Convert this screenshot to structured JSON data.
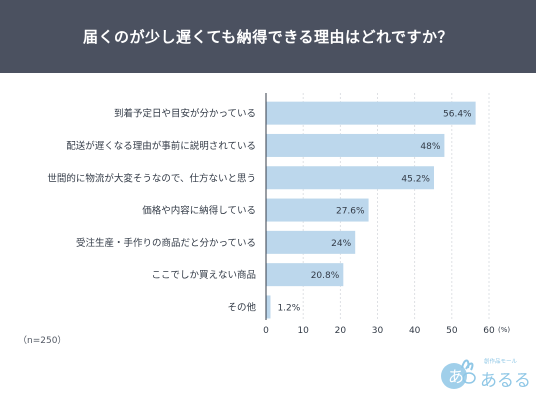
{
  "header": {
    "title": "届くのが少し遅くても納得できる理由はどれですか？"
  },
  "chart_data": {
    "type": "bar",
    "orientation": "horizontal",
    "categories": [
      "到着予定日や目安が分かっている",
      "配送が遅くなる理由が事前に説明されている",
      "世間的に物流が大変そうなので、仕方ないと思う",
      "価格や内容に納得している",
      "受注生産・手作りの商品だと分かっている",
      "ここでしか買えない商品",
      "その他"
    ],
    "values": [
      56.4,
      48,
      45.2,
      27.6,
      24,
      20.8,
      1.2
    ],
    "value_labels": [
      "56.4%",
      "48%",
      "45.2%",
      "27.6%",
      "24%",
      "20.8%",
      "1.2%"
    ],
    "xlim": [
      0,
      60
    ],
    "xticks": [
      "0",
      "10",
      "20",
      "30",
      "40",
      "50",
      "60"
    ],
    "xunit": "(%)",
    "grid": true,
    "bar_color": "#bcd7ec"
  },
  "footer": {
    "sample_size": "（n=250）"
  },
  "logo": {
    "small_text": "創作品モール",
    "brand": "あるる",
    "icon": "rabbit-icon",
    "color": "#8fc7e6"
  }
}
